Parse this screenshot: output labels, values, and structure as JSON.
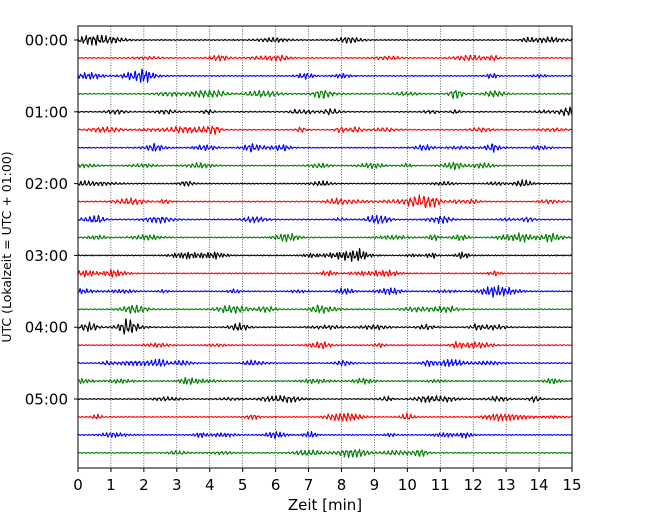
{
  "chart_data": {
    "type": "line",
    "title": "",
    "xlabel": "Zeit  [min]",
    "ylabel": "UTC (Lokalzeit = UTC + 01:00)",
    "xlim": [
      0,
      15
    ],
    "x_ticks": [
      0,
      1,
      2,
      3,
      4,
      5,
      6,
      7,
      8,
      9,
      10,
      11,
      12,
      13,
      14,
      15
    ],
    "x_tick_labels": [
      "0",
      "1",
      "2",
      "3",
      "4",
      "5",
      "6",
      "7",
      "8",
      "9",
      "10",
      "11",
      "12",
      "13",
      "14",
      "15"
    ],
    "y_tick_labels": [
      "00:00",
      "01:00",
      "02:00",
      "03:00",
      "04:00",
      "05:00"
    ],
    "vertical_grid": "dotted",
    "trace_interval_minutes": 15,
    "trace_count": 24,
    "trace_colors": [
      "#000000",
      "#ff0000",
      "#0000ff",
      "#007f00"
    ],
    "legend": "none"
  }
}
